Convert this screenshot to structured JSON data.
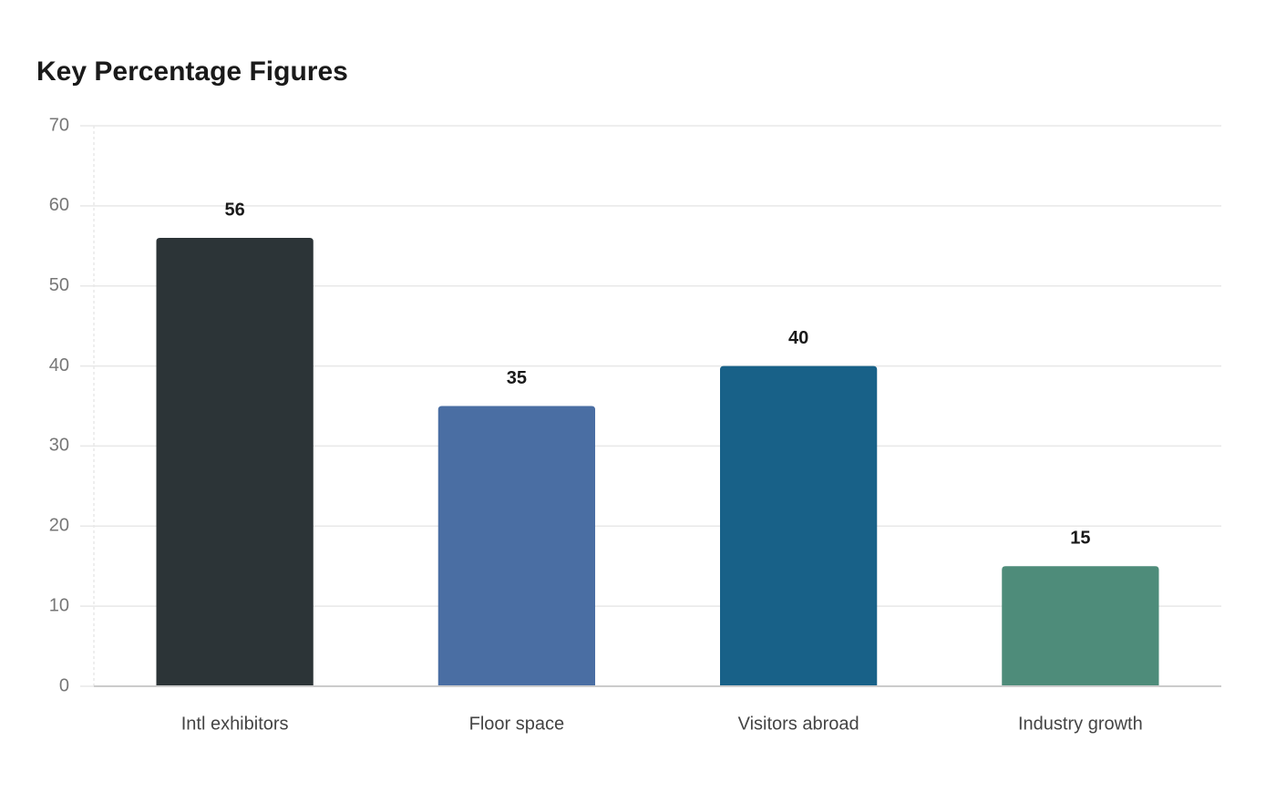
{
  "chart_data": {
    "type": "bar",
    "title": "Key Percentage Figures",
    "categories": [
      "Intl exhibitors",
      "Floor space",
      "Visitors abroad",
      "Industry growth"
    ],
    "values": [
      56,
      35,
      40,
      15
    ],
    "colors": [
      "#2c3437",
      "#4a6ea3",
      "#186188",
      "#4e8c7a"
    ],
    "ylim": [
      0,
      70
    ],
    "yticks": [
      0,
      10,
      20,
      30,
      40,
      50,
      60,
      70
    ],
    "grid": true
  }
}
